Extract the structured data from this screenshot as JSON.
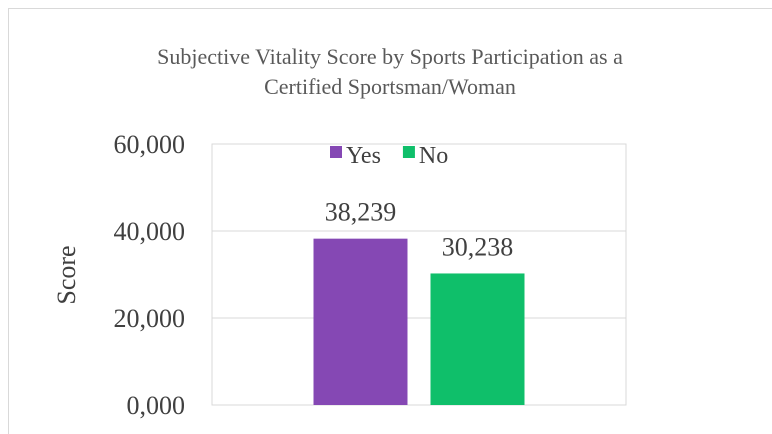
{
  "chart_data": {
    "type": "bar",
    "title": "Subjective Vitality Score by Sports Participation as a Certified Sportsman/Woman",
    "y_label": "Score",
    "categories": [
      null
    ],
    "series": [
      {
        "name": "Yes",
        "color": "#8548b4",
        "values": [
          38.239
        ],
        "value_labels": [
          "38,239"
        ]
      },
      {
        "name": "No",
        "color": "#0fbf6a",
        "values": [
          30.238
        ],
        "value_labels": [
          "30,238"
        ]
      }
    ],
    "ylim": [
      0,
      60
    ],
    "yticks": [
      {
        "value": 0,
        "label": "0,000"
      },
      {
        "value": 20,
        "label": "20,000"
      },
      {
        "value": 40,
        "label": "40,000"
      },
      {
        "value": 60,
        "label": "60,000"
      }
    ],
    "grid": true,
    "legend": "top"
  }
}
